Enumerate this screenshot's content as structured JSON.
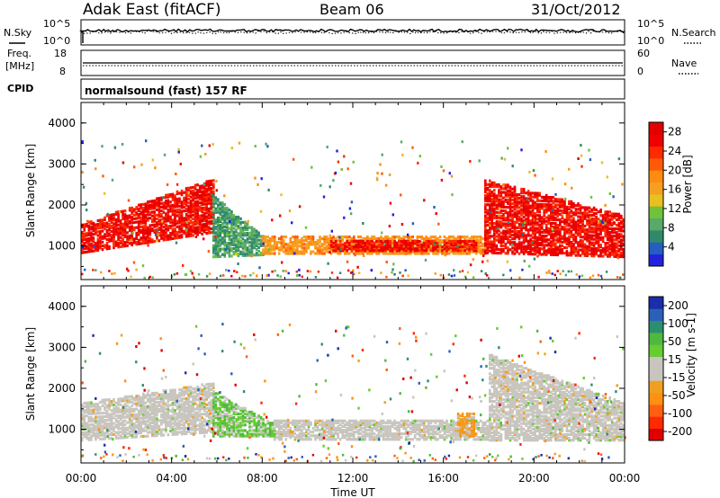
{
  "header": {
    "radar": "Adak East (fitACF)",
    "beam": "Beam 06",
    "date": "31/Oct/2012"
  },
  "nsky_panel": {
    "left_label": "N.Sky",
    "left_ticks": [
      "10^5",
      "10^0"
    ],
    "right_ticks": [
      "10^5",
      "10^0"
    ],
    "right_label": "N.Search"
  },
  "freq_panel": {
    "left_label_1": "Freq.",
    "left_label_2": "[MHz]",
    "left_ticks": [
      "18",
      "8"
    ],
    "right_ticks": [
      "60",
      "0"
    ],
    "right_label": "Nave"
  },
  "cpid_panel": {
    "label": "CPID",
    "mode": "normalsound (fast) 157 RF"
  },
  "colors": {
    "power": [
      "#2222dd",
      "#235ec0",
      "#2f8a6a",
      "#5aa86a",
      "#70c23a",
      "#e8c020",
      "#f5a020",
      "#ff8c10",
      "#ff5a08",
      "#ff2a00",
      "#f00000",
      "#e00000"
    ],
    "velocity": [
      "#e00000",
      "#ff2a00",
      "#ff6010",
      "#ff9010",
      "#f0a020",
      "#c8c5bf",
      "#c8c5bf",
      "#66cc33",
      "#4fb840",
      "#2c8e70",
      "#2c60b8",
      "#1a2eaa"
    ]
  },
  "chart_data": [
    {
      "type": "heatmap",
      "name": "power",
      "xlabel": "",
      "ylabel": "Slant Range [km]",
      "x_unit": "hour_UT",
      "xlim": [
        0,
        24
      ],
      "ylim": [
        180,
        4500
      ],
      "yticks": [
        "1000",
        "2000",
        "3000",
        "4000"
      ],
      "xticks": [
        "00:00",
        "04:00",
        "08:00",
        "12:00",
        "16:00",
        "20:00",
        "00:00"
      ],
      "colorbar": {
        "label": "Power [dB]",
        "ticks": [
          "4",
          "8",
          "12",
          "16",
          "20",
          "24",
          "28"
        ],
        "range": [
          0,
          30
        ]
      },
      "echo_regions": [
        {
          "t0": 0.0,
          "t1": 5.8,
          "r_lo_start": 800,
          "r_lo_end": 1300,
          "r_hi_start": 1500,
          "r_hi_end": 2600,
          "value": 26
        },
        {
          "t0": 5.8,
          "t1": 8.0,
          "r_lo_start": 700,
          "r_lo_end": 750,
          "r_hi_start": 2200,
          "r_hi_end": 1200,
          "value": 8
        },
        {
          "t0": 8.0,
          "t1": 17.8,
          "r_lo_start": 780,
          "r_lo_end": 780,
          "r_hi_start": 1200,
          "r_hi_end": 1200,
          "value": 18
        },
        {
          "t0": 11.0,
          "t1": 17.5,
          "r_lo_start": 850,
          "r_lo_end": 850,
          "r_hi_start": 1100,
          "r_hi_end": 1100,
          "value": 26
        },
        {
          "t0": 17.8,
          "t1": 24.0,
          "r_lo_start": 800,
          "r_lo_end": 700,
          "r_hi_start": 2600,
          "r_hi_end": 1700,
          "value": 26
        }
      ]
    },
    {
      "type": "heatmap",
      "name": "velocity",
      "xlabel": "Time UT",
      "ylabel": "Slant Range [km]",
      "x_unit": "hour_UT",
      "xlim": [
        0,
        24
      ],
      "ylim": [
        180,
        4500
      ],
      "yticks": [
        "1000",
        "2000",
        "3000",
        "4000"
      ],
      "xticks": [
        "00:00",
        "04:00",
        "08:00",
        "12:00",
        "16:00",
        "20:00",
        "00:00"
      ],
      "colorbar": {
        "label": "Velocity [m s-1]",
        "ticks": [
          "200",
          "100",
          "50",
          "15",
          "-15",
          "-50",
          "-100",
          "-200"
        ],
        "range": [
          -250,
          250
        ]
      },
      "echo_regions": [
        {
          "t0": 0.0,
          "t1": 5.8,
          "r_lo_start": 700,
          "r_lo_end": 900,
          "r_hi_start": 1600,
          "r_hi_end": 2100,
          "value": 0
        },
        {
          "t0": 5.8,
          "t1": 8.5,
          "r_lo_start": 800,
          "r_lo_end": 800,
          "r_hi_start": 1900,
          "r_hi_end": 1100,
          "value": 60
        },
        {
          "t0": 8.5,
          "t1": 18.0,
          "r_lo_start": 720,
          "r_lo_end": 720,
          "r_hi_start": 1200,
          "r_hi_end": 1200,
          "value": 0
        },
        {
          "t0": 16.6,
          "t1": 17.4,
          "r_lo_start": 800,
          "r_lo_end": 800,
          "r_hi_start": 1350,
          "r_hi_end": 1350,
          "value": -70
        },
        {
          "t0": 18.0,
          "t1": 24.0,
          "r_lo_start": 700,
          "r_lo_end": 700,
          "r_hi_start": 2800,
          "r_hi_end": 1600,
          "value": 0
        }
      ]
    }
  ]
}
